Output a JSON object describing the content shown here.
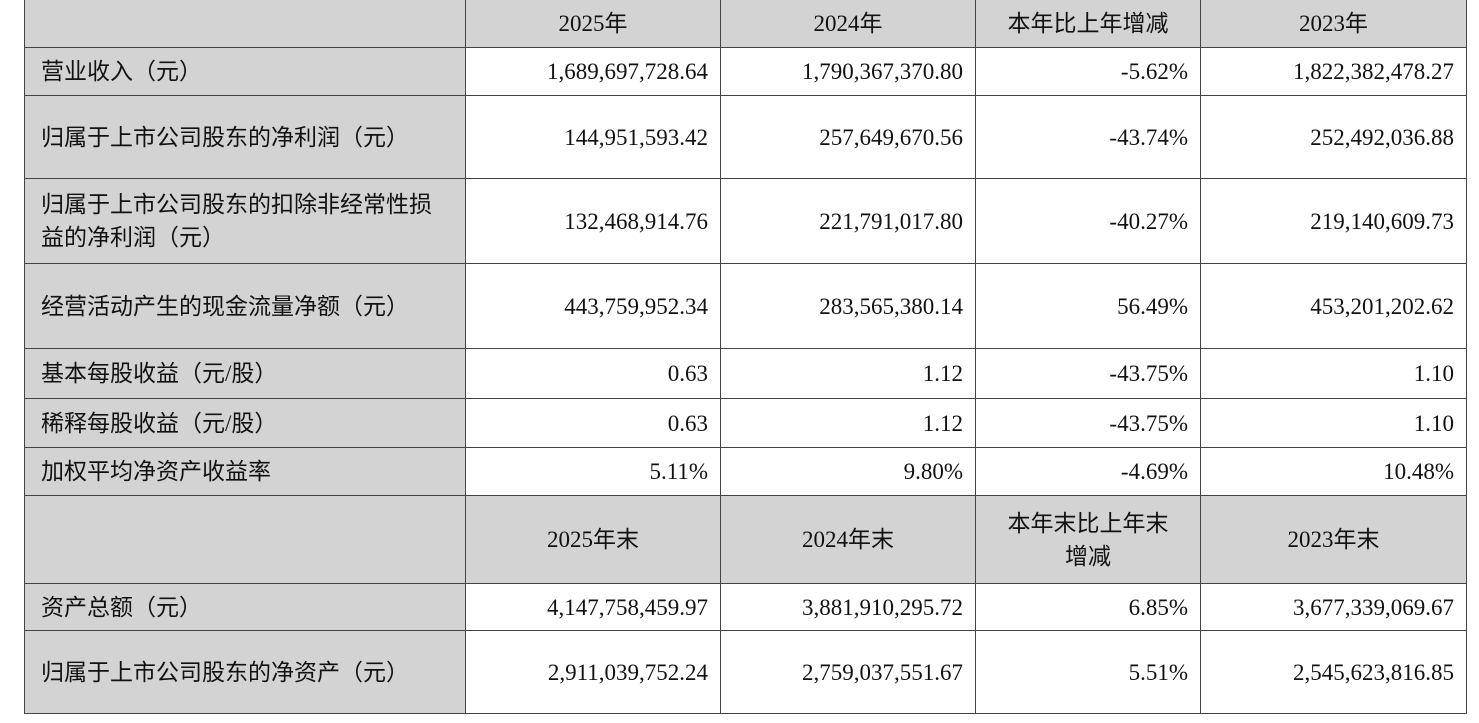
{
  "header1": [
    "",
    "2025年",
    "2024年",
    "本年比上年增减",
    "2023年"
  ],
  "rows1": [
    {
      "label": "营业收入（元）",
      "values": [
        "1,689,697,728.64",
        "1,790,367,370.80",
        "-5.62%",
        "1,822,382,478.27"
      ]
    },
    {
      "label": "归属于上市公司股东的净利润（元）",
      "values": [
        "144,951,593.42",
        "257,649,670.56",
        "-43.74%",
        "252,492,036.88"
      ]
    },
    {
      "label": "归属于上市公司股东的扣除非经常性损益的净利润（元）",
      "values": [
        "132,468,914.76",
        "221,791,017.80",
        "-40.27%",
        "219,140,609.73"
      ]
    },
    {
      "label": "经营活动产生的现金流量净额（元）",
      "values": [
        "443,759,952.34",
        "283,565,380.14",
        "56.49%",
        "453,201,202.62"
      ]
    },
    {
      "label": "基本每股收益（元/股）",
      "values": [
        "0.63",
        "1.12",
        "-43.75%",
        "1.10"
      ]
    },
    {
      "label": "稀释每股收益（元/股）",
      "values": [
        "0.63",
        "1.12",
        "-43.75%",
        "1.10"
      ]
    },
    {
      "label": "加权平均净资产收益率",
      "values": [
        "5.11%",
        "9.80%",
        "-4.69%",
        "10.48%"
      ]
    }
  ],
  "header2": [
    "",
    "2025年末",
    "2024年末",
    "本年末比上年末增减",
    "2023年末"
  ],
  "rows2": [
    {
      "label": "资产总额（元）",
      "values": [
        "4,147,758,459.97",
        "3,881,910,295.72",
        "6.85%",
        "3,677,339,069.67"
      ]
    },
    {
      "label": "归属于上市公司股东的净资产（元）",
      "values": [
        "2,911,039,752.24",
        "2,759,037,551.67",
        "5.51%",
        "2,545,623,816.85"
      ]
    }
  ]
}
